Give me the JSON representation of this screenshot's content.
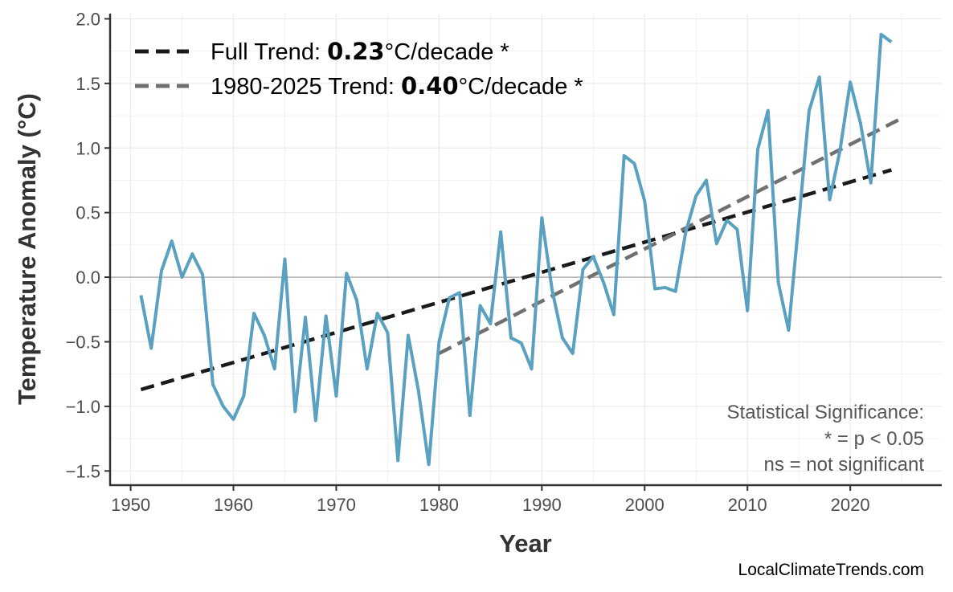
{
  "chart_data": {
    "type": "line",
    "title": "",
    "xlabel": "Year",
    "ylabel": "Temperature Anomaly (°C)",
    "xlim": [
      1948,
      2028.9
    ],
    "ylim": [
      -1.61,
      2.04
    ],
    "xticks": [
      1950,
      1960,
      1970,
      1980,
      1990,
      2000,
      2010,
      2020
    ],
    "yticks": [
      -1.5,
      -1.0,
      -0.5,
      0.0,
      0.5,
      1.0,
      1.5,
      2.0
    ],
    "ytick_labels": [
      "−1.5",
      "−1.0",
      "−0.5",
      "0.0",
      "0.5",
      "1.0",
      "1.5",
      "2.0"
    ],
    "grid": true,
    "colors": {
      "series": "#5aa0c0",
      "full_trend": "#1a1a1a",
      "recent_trend": "#707070",
      "zero_line": "#b0b0b0",
      "grid": "#ebebeb"
    },
    "series": [
      {
        "x": [
          1951,
          1952,
          1953,
          1954,
          1955,
          1956,
          1957,
          1958,
          1959,
          1960,
          1961,
          1962,
          1963,
          1964,
          1965,
          1966,
          1967,
          1968,
          1969,
          1970,
          1971,
          1972,
          1973,
          1974,
          1975,
          1976,
          1977,
          1978,
          1979,
          1980,
          1981,
          1982,
          1983,
          1984,
          1985,
          1986,
          1987,
          1988,
          1989,
          1990,
          1991,
          1992,
          1993,
          1994,
          1995,
          1996,
          1997,
          1998,
          1999,
          2000,
          2001,
          2002,
          2003,
          2004,
          2005,
          2006,
          2007,
          2008,
          2009,
          2010,
          2011,
          2012,
          2013,
          2014,
          2015,
          2016,
          2017,
          2018,
          2019,
          2020,
          2021,
          2022,
          2023,
          2024
        ],
        "y": [
          -0.14,
          -0.55,
          0.05,
          0.28,
          0.0,
          0.18,
          0.02,
          -0.83,
          -1.0,
          -1.1,
          -0.92,
          -0.28,
          -0.45,
          -0.71,
          0.14,
          -1.04,
          -0.31,
          -1.11,
          -0.3,
          -0.92,
          0.03,
          -0.18,
          -0.71,
          -0.28,
          -0.43,
          -1.42,
          -0.45,
          -0.88,
          -1.45,
          -0.5,
          -0.16,
          -0.12,
          -1.07,
          -0.22,
          -0.36,
          0.35,
          -0.47,
          -0.51,
          -0.71,
          0.46,
          -0.1,
          -0.47,
          -0.59,
          0.06,
          0.16,
          -0.04,
          -0.29,
          0.94,
          0.88,
          0.59,
          -0.09,
          -0.08,
          -0.11,
          0.35,
          0.63,
          0.75,
          0.26,
          0.44,
          0.37,
          -0.26,
          0.99,
          1.29,
          -0.04,
          -0.41,
          0.44,
          1.29,
          1.55,
          0.6,
          0.98,
          1.51,
          1.19,
          0.73,
          1.88,
          1.82
        ]
      }
    ],
    "trends": [
      {
        "label_prefix": "Full Trend: ",
        "value": "0.23",
        "label_suffix": "°C/decade *",
        "x": [
          1951,
          2024
        ],
        "y": [
          -0.87,
          0.83
        ],
        "style": "dashed"
      },
      {
        "label_prefix": "1980-2025 Trend: ",
        "value": "0.40",
        "label_suffix": "°C/decade *",
        "x": [
          1980,
          2025
        ],
        "y": [
          -0.59,
          1.23
        ],
        "style": "dashed"
      }
    ],
    "legend_position": "top-left",
    "annotation": [
      "Statistical Significance:",
      "* = p < 0.05",
      "ns = not significant"
    ]
  },
  "watermark": "LocalClimateTrends.com"
}
